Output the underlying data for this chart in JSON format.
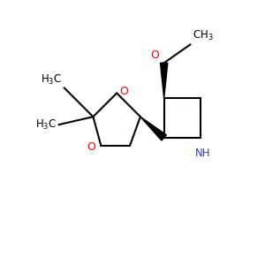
{
  "background_color": "#ffffff",
  "bond_color": "#000000",
  "o_color": "#ff0000",
  "n_color": "#3333cc",
  "text_color": "#000000",
  "figsize": [
    3.0,
    3.0
  ],
  "dpi": 100,
  "xlim": [
    0,
    10
  ],
  "ylim": [
    0,
    10
  ]
}
